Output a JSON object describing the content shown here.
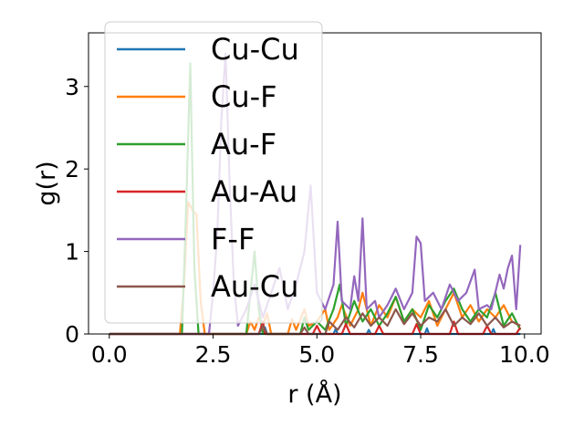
{
  "chart_data": {
    "type": "line",
    "xlabel": "r (Å)",
    "ylabel": "g(r)",
    "xlim": [
      -0.5,
      10.4
    ],
    "ylim": [
      0,
      3.65
    ],
    "xticks": [
      0.0,
      2.5,
      5.0,
      7.5,
      10.0
    ],
    "xtick_labels": [
      "0.0",
      "2.5",
      "5.0",
      "7.5",
      "10.0"
    ],
    "yticks": [
      0,
      1,
      2,
      3
    ],
    "ytick_labels": [
      "0",
      "1",
      "2",
      "3"
    ],
    "grid": false,
    "legend_position": "top-left",
    "series": [
      {
        "name": "Cu-Cu",
        "color": "#1f77b4",
        "points": [
          [
            0,
            0
          ],
          [
            1,
            0
          ],
          [
            2,
            0
          ],
          [
            3,
            0
          ],
          [
            3.7,
            0
          ],
          [
            3.75,
            0.08
          ],
          [
            3.8,
            0
          ],
          [
            4.5,
            0
          ],
          [
            5.4,
            0
          ],
          [
            5.45,
            0.06
          ],
          [
            5.5,
            0
          ],
          [
            6.2,
            0
          ],
          [
            6.25,
            0.05
          ],
          [
            6.3,
            0
          ],
          [
            7,
            0
          ],
          [
            7.6,
            0
          ],
          [
            7.65,
            0.07
          ],
          [
            7.7,
            0
          ],
          [
            8.5,
            0
          ],
          [
            9.2,
            0
          ],
          [
            9.25,
            0.06
          ],
          [
            9.3,
            0
          ],
          [
            9.9,
            0
          ]
        ]
      },
      {
        "name": "Cu-F",
        "color": "#ff7f0e",
        "points": [
          [
            0,
            0
          ],
          [
            1.7,
            0
          ],
          [
            1.8,
            0.6
          ],
          [
            1.9,
            1.6
          ],
          [
            2.0,
            1.5
          ],
          [
            2.1,
            1.45
          ],
          [
            2.2,
            0.4
          ],
          [
            2.3,
            0
          ],
          [
            3.3,
            0
          ],
          [
            3.4,
            0.15
          ],
          [
            3.5,
            0.05
          ],
          [
            3.6,
            0.2
          ],
          [
            3.7,
            0.1
          ],
          [
            3.8,
            0.25
          ],
          [
            3.9,
            0
          ],
          [
            4.3,
            0
          ],
          [
            4.4,
            0.18
          ],
          [
            4.5,
            0.05
          ],
          [
            4.7,
            0.3
          ],
          [
            4.8,
            0.1
          ],
          [
            5.0,
            0.15
          ],
          [
            5.2,
            0.3
          ],
          [
            5.3,
            0.05
          ],
          [
            5.5,
            0.2
          ],
          [
            5.6,
            0.35
          ],
          [
            5.8,
            0.1
          ],
          [
            6.0,
            0.3
          ],
          [
            6.1,
            0.5
          ],
          [
            6.3,
            0.1
          ],
          [
            6.5,
            0.35
          ],
          [
            6.7,
            0.2
          ],
          [
            6.9,
            0.45
          ],
          [
            7.1,
            0.15
          ],
          [
            7.3,
            0.3
          ],
          [
            7.5,
            0.2
          ],
          [
            7.7,
            0.4
          ],
          [
            7.9,
            0.1
          ],
          [
            8.1,
            0.3
          ],
          [
            8.3,
            0.5
          ],
          [
            8.5,
            0.2
          ],
          [
            8.7,
            0.35
          ],
          [
            8.9,
            0.15
          ],
          [
            9.1,
            0.3
          ],
          [
            9.3,
            0.2
          ],
          [
            9.5,
            0.35
          ],
          [
            9.7,
            0.15
          ],
          [
            9.9,
            0.1
          ]
        ]
      },
      {
        "name": "Au-F",
        "color": "#2ca02c",
        "points": [
          [
            0,
            0
          ],
          [
            1.75,
            0
          ],
          [
            1.85,
            1.5
          ],
          [
            1.95,
            3.28
          ],
          [
            2.05,
            0.8
          ],
          [
            2.15,
            0
          ],
          [
            3.3,
            0
          ],
          [
            3.4,
            0.5
          ],
          [
            3.5,
            1.0
          ],
          [
            3.6,
            0.3
          ],
          [
            3.7,
            0
          ],
          [
            4.6,
            0
          ],
          [
            4.7,
            0.2
          ],
          [
            4.8,
            0.05
          ],
          [
            5.0,
            0.15
          ],
          [
            5.2,
            0.05
          ],
          [
            5.4,
            0.3
          ],
          [
            5.55,
            0.6
          ],
          [
            5.7,
            0.1
          ],
          [
            5.9,
            0.4
          ],
          [
            6.1,
            0.15
          ],
          [
            6.3,
            0.3
          ],
          [
            6.5,
            0.1
          ],
          [
            6.7,
            0.25
          ],
          [
            6.9,
            0.45
          ],
          [
            7.1,
            0.15
          ],
          [
            7.3,
            0.3
          ],
          [
            7.5,
            0.05
          ],
          [
            7.7,
            0.35
          ],
          [
            7.9,
            0.2
          ],
          [
            8.1,
            0.4
          ],
          [
            8.3,
            0.55
          ],
          [
            8.5,
            0.3
          ],
          [
            8.7,
            0.15
          ],
          [
            8.9,
            0.3
          ],
          [
            9.1,
            0.2
          ],
          [
            9.3,
            0.5
          ],
          [
            9.5,
            0.1
          ],
          [
            9.7,
            0.25
          ],
          [
            9.9,
            0.05
          ]
        ]
      },
      {
        "name": "Au-Au",
        "color": "#d62728",
        "points": [
          [
            0,
            0
          ],
          [
            3.6,
            0
          ],
          [
            3.7,
            0.15
          ],
          [
            3.75,
            0
          ],
          [
            4.9,
            0
          ],
          [
            5.0,
            0.1
          ],
          [
            5.1,
            0
          ],
          [
            5.6,
            0
          ],
          [
            5.7,
            0.12
          ],
          [
            5.8,
            0
          ],
          [
            6.4,
            0
          ],
          [
            6.5,
            0.1
          ],
          [
            6.6,
            0
          ],
          [
            7.3,
            0
          ],
          [
            7.4,
            0.12
          ],
          [
            7.5,
            0
          ],
          [
            8.2,
            0
          ],
          [
            8.3,
            0.15
          ],
          [
            8.4,
            0
          ],
          [
            9.0,
            0
          ],
          [
            9.1,
            0.1
          ],
          [
            9.2,
            0
          ],
          [
            9.8,
            0
          ],
          [
            9.9,
            0.08
          ]
        ]
      },
      {
        "name": "F-F",
        "color": "#9467bd",
        "points": [
          [
            0,
            0
          ],
          [
            2.4,
            0
          ],
          [
            2.5,
            0.5
          ],
          [
            2.6,
            1.2
          ],
          [
            2.7,
            2.6
          ],
          [
            2.8,
            3.4
          ],
          [
            2.9,
            1.8
          ],
          [
            3.0,
            0.6
          ],
          [
            3.1,
            0.1
          ],
          [
            3.3,
            0.3
          ],
          [
            3.5,
            0.6
          ],
          [
            3.7,
            0.2
          ],
          [
            3.9,
            0.5
          ],
          [
            4.1,
            0.8
          ],
          [
            4.3,
            0.3
          ],
          [
            4.5,
            0.6
          ],
          [
            4.7,
            1.0
          ],
          [
            4.85,
            1.8
          ],
          [
            5.0,
            0.5
          ],
          [
            5.2,
            0.3
          ],
          [
            5.4,
            0.6
          ],
          [
            5.5,
            1.36
          ],
          [
            5.6,
            0.4
          ],
          [
            5.8,
            0.3
          ],
          [
            5.9,
            0.7
          ],
          [
            6.0,
            0.4
          ],
          [
            6.1,
            1.4
          ],
          [
            6.2,
            0.3
          ],
          [
            6.4,
            0.4
          ],
          [
            6.5,
            0.2
          ],
          [
            6.7,
            0.35
          ],
          [
            6.9,
            0.55
          ],
          [
            7.1,
            0.3
          ],
          [
            7.3,
            0.5
          ],
          [
            7.4,
            1.18
          ],
          [
            7.5,
            1.1
          ],
          [
            7.6,
            0.4
          ],
          [
            7.8,
            0.5
          ],
          [
            8.0,
            0.3
          ],
          [
            8.2,
            0.6
          ],
          [
            8.4,
            0.4
          ],
          [
            8.6,
            0.5
          ],
          [
            8.8,
            0.78
          ],
          [
            8.9,
            0.3
          ],
          [
            9.1,
            0.35
          ],
          [
            9.2,
            0.3
          ],
          [
            9.4,
            0.72
          ],
          [
            9.5,
            0.55
          ],
          [
            9.6,
            0.8
          ],
          [
            9.7,
            0.95
          ],
          [
            9.8,
            0.3
          ],
          [
            9.9,
            1.08
          ]
        ]
      },
      {
        "name": "Au-Cu",
        "color": "#8c564b",
        "points": [
          [
            0,
            0
          ],
          [
            3.6,
            0
          ],
          [
            3.7,
            0.1
          ],
          [
            3.8,
            0
          ],
          [
            4.6,
            0
          ],
          [
            4.7,
            0.08
          ],
          [
            4.8,
            0
          ],
          [
            5.2,
            0
          ],
          [
            5.3,
            0.15
          ],
          [
            5.5,
            0.05
          ],
          [
            5.7,
            0.2
          ],
          [
            5.9,
            0.08
          ],
          [
            6.1,
            0.25
          ],
          [
            6.3,
            0.1
          ],
          [
            6.5,
            0.2
          ],
          [
            6.7,
            0.1
          ],
          [
            6.9,
            0.3
          ],
          [
            7.1,
            0.12
          ],
          [
            7.3,
            0.25
          ],
          [
            7.5,
            0.1
          ],
          [
            7.7,
            0.2
          ],
          [
            7.9,
            0.15
          ],
          [
            8.1,
            0.3
          ],
          [
            8.3,
            0.1
          ],
          [
            8.5,
            0.2
          ],
          [
            8.7,
            0.12
          ],
          [
            8.9,
            0.25
          ],
          [
            9.1,
            0.1
          ],
          [
            9.3,
            0.2
          ],
          [
            9.5,
            0.08
          ],
          [
            9.7,
            0.15
          ],
          [
            9.9,
            0.1
          ]
        ]
      }
    ]
  }
}
